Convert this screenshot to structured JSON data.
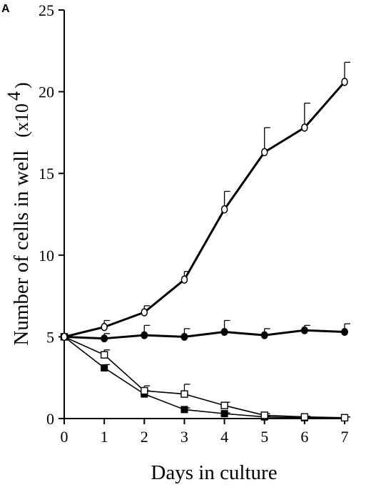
{
  "panel_label": "A",
  "chart_data": {
    "type": "line",
    "title": "",
    "xlabel": "Days in culture",
    "ylabel": "Number of cells in well",
    "ylabel_unit_prefix": "(x10",
    "ylabel_unit_exponent": "4",
    "ylabel_unit_suffix": ")",
    "xlim": [
      0,
      7
    ],
    "ylim": [
      0,
      25
    ],
    "x_ticks": [
      0,
      1,
      2,
      3,
      4,
      5,
      6,
      7
    ],
    "y_ticks": [
      0,
      5,
      10,
      15,
      20,
      25
    ],
    "grid": false,
    "legend": "none",
    "series": [
      {
        "marker": "open-circle",
        "line": "thick",
        "x": [
          0,
          1,
          2,
          3,
          4,
          5,
          6,
          7
        ],
        "y": [
          5.0,
          5.6,
          6.5,
          8.5,
          12.8,
          16.3,
          17.8,
          20.6
        ],
        "error": [
          0,
          0.4,
          0.4,
          0.5,
          1.1,
          1.5,
          1.5,
          1.2
        ]
      },
      {
        "marker": "filled-circle",
        "line": "thick",
        "x": [
          0,
          1,
          2,
          3,
          4,
          5,
          6,
          7
        ],
        "y": [
          5.0,
          4.9,
          5.1,
          5.0,
          5.3,
          5.1,
          5.4,
          5.3
        ],
        "error": [
          0,
          0.3,
          0.6,
          0.5,
          0.7,
          0.4,
          0.3,
          0.5
        ]
      },
      {
        "marker": "open-square",
        "line": "thin",
        "x": [
          0,
          1,
          2,
          3,
          4,
          5,
          6,
          7
        ],
        "y": [
          5.0,
          3.9,
          1.7,
          1.5,
          0.8,
          0.2,
          0.1,
          0.05
        ],
        "error": [
          0,
          0.3,
          0.3,
          0.6,
          0.2,
          0.1,
          0.05,
          0.05
        ]
      },
      {
        "marker": "filled-square",
        "line": "thin",
        "x": [
          0,
          1,
          2,
          3,
          4,
          5,
          6,
          7
        ],
        "y": [
          5.0,
          3.1,
          1.5,
          0.55,
          0.3,
          0.1,
          0.05,
          0.05
        ],
        "error": [
          0,
          0.2,
          0.2,
          0.1,
          0.05,
          0.05,
          0.05,
          0.05
        ]
      }
    ]
  }
}
